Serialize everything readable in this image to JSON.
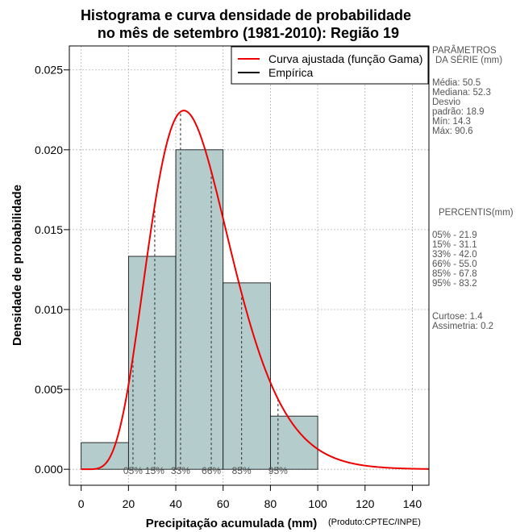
{
  "chart_data": {
    "type": "bar",
    "title_line1": "Histograma e curva densidade de probabilidade",
    "title_line2": "no mês de setembro (1981-2010): Região 19",
    "xlabel": "Precipitação acumulada (mm)",
    "ylabel": "Densidade de probabilidade",
    "credit": "(Produto:CPTEC/INPE)",
    "xlim": [
      -5,
      147
    ],
    "ylim": [
      -0.001,
      0.0265
    ],
    "x_ticks": [
      0,
      20,
      40,
      60,
      80,
      100,
      120,
      140
    ],
    "y_ticks": [
      0.0,
      0.005,
      0.01,
      0.015,
      0.02,
      0.025
    ],
    "y_tick_labels": [
      "0.000",
      "0.005",
      "0.010",
      "0.015",
      "0.020",
      "0.025"
    ],
    "grid": true,
    "bins": [
      {
        "start": 0,
        "end": 20,
        "density": 0.00167
      },
      {
        "start": 20,
        "end": 40,
        "density": 0.01333
      },
      {
        "start": 40,
        "end": 60,
        "density": 0.02
      },
      {
        "start": 60,
        "end": 80,
        "density": 0.01167
      },
      {
        "start": 80,
        "end": 100,
        "density": 0.00333
      }
    ],
    "bar_color": "#b4cccc",
    "curve": {
      "name": "Curva ajustada (função Gama)",
      "distribution": "gamma",
      "mean": 50.5,
      "sd": 18.9,
      "color": "#ee0000"
    },
    "empirical_name": "Empírica",
    "legend_position": "top-right",
    "percentile_markers": [
      {
        "label": "05%",
        "value": 21.9
      },
      {
        "label": "15%",
        "value": 31.1
      },
      {
        "label": "33%",
        "value": 42.0
      },
      {
        "label": "66%",
        "value": 55.0
      },
      {
        "label": "85%",
        "value": 67.8
      },
      {
        "label": "95%",
        "value": 83.2
      }
    ]
  },
  "sidebar": {
    "params_title_1": "PARÂMETROS",
    "params_title_2": "DA SÉRIE (mm)",
    "stats": [
      {
        "label": "Média:",
        "value": "50.5"
      },
      {
        "label": "Mediana:",
        "value": "52.3"
      },
      {
        "label": "Desvio",
        "value": ""
      },
      {
        "label": "padrão:",
        "value": "18.9"
      },
      {
        "label": "Mín:",
        "value": "14.3"
      },
      {
        "label": "Máx:",
        "value": "90.6"
      }
    ],
    "percentis_title": "PERCENTIS(mm)",
    "percentis": [
      {
        "label": "05% -",
        "value": "21.9"
      },
      {
        "label": "15% -",
        "value": "31.1"
      },
      {
        "label": "33% -",
        "value": "42.0"
      },
      {
        "label": "66% -",
        "value": "55.0"
      },
      {
        "label": "85% -",
        "value": "67.8"
      },
      {
        "label": "95% -",
        "value": "83.2"
      }
    ],
    "shape": [
      {
        "label": "Curtose:",
        "value": "1.4"
      },
      {
        "label": "Assimetria:",
        "value": "0.2"
      }
    ]
  }
}
